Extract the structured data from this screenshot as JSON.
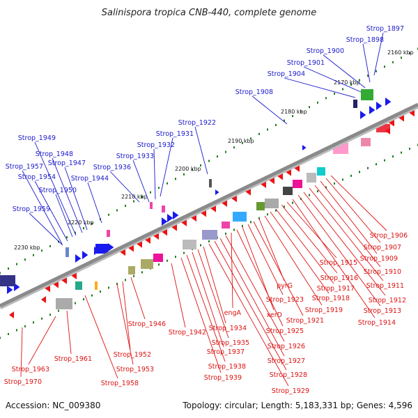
{
  "title": "Salinispora tropica CNB-440, complete genome",
  "footer": {
    "accession": "Accession: NC_009380",
    "summary": "Topology: circular; Length: 5,183,331 bp; Genes: 4,596"
  },
  "colors": {
    "forward_label": "#1a1acc",
    "reverse_label": "#dd1111",
    "forward_gene": "#1a1aee",
    "reverse_gene": "#ee1111",
    "backbone": "#8a8a8a",
    "tick": "#1f7a1f"
  },
  "ticks": [
    "2160 kbp",
    "2170 kbp",
    "2180 kbp",
    "2190 kbp",
    "2200 kbp",
    "2210 kbp",
    "2220 kbp",
    "2230 kbp"
  ],
  "forward_labels": [
    "Strop_1897",
    "Strop_1898",
    "Strop_1900",
    "Strop_1901",
    "Strop_1904",
    "Strop_1908",
    "Strop_1922",
    "Strop_1931",
    "Strop_1932",
    "Strop_1933",
    "Strop_1936",
    "Strop_1944",
    "Strop_1947",
    "Strop_1948",
    "Strop_1949",
    "Strop_1950",
    "Strop_1954",
    "Strop_1957",
    "Strop_1959"
  ],
  "reverse_labels": [
    "Strop_1906",
    "Strop_1907",
    "Strop_1909",
    "Strop_1910",
    "Strop_1911",
    "Strop_1912",
    "Strop_1913",
    "Strop_1914",
    "Strop_1915",
    "Strop_1916",
    "Strop_1917",
    "Strop_1918",
    "Strop_1919",
    "pyrG",
    "Strop_1921",
    "Strop_1923",
    "xerD",
    "Strop_1925",
    "engA",
    "Strop_1926",
    "Strop_1927",
    "Strop_1928",
    "Strop_1929",
    "Strop_1934",
    "Strop_1935",
    "Strop_1937",
    "Strop_1938",
    "Strop_1939",
    "Strop_1942",
    "Strop_1946",
    "Strop_1952",
    "Strop_1953",
    "Strop_1958",
    "Strop_1961",
    "Strop_1963",
    "Strop_1970"
  ]
}
